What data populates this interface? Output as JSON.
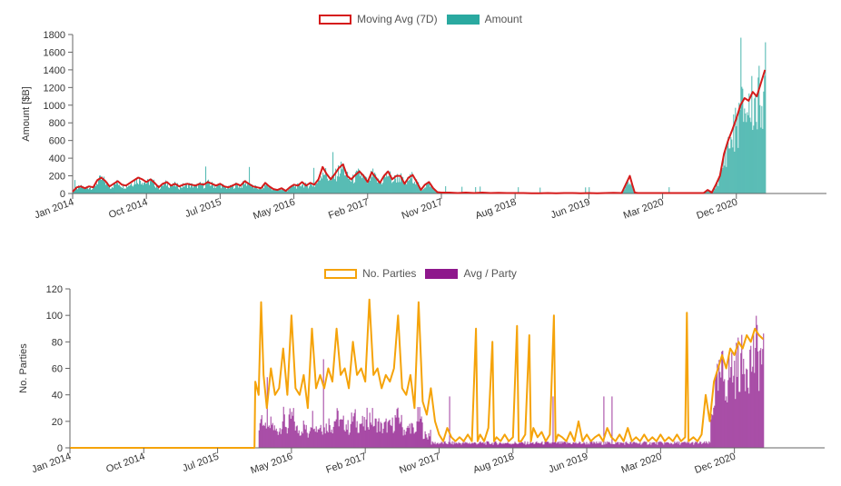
{
  "chart_data": [
    {
      "type": "bar+line",
      "legend": [
        {
          "name": "Moving Avg (7D)",
          "color": "#d51b1b",
          "style": "outline"
        },
        {
          "name": "Amount",
          "color": "#2aa9a0",
          "style": "fill"
        }
      ],
      "ylabel": "Amount [$B]",
      "ylim": [
        0,
        1800
      ],
      "yticks": [
        0,
        200,
        400,
        600,
        800,
        1000,
        1200,
        1400,
        1600,
        1800
      ],
      "xticks": [
        "Jan 2014",
        "Oct 2014",
        "Jul 2015",
        "May 2016",
        "Feb 2017",
        "Nov 2017",
        "Aug 2018",
        "Jun 2019",
        "Mar 2020",
        "Dec 2020"
      ],
      "x_range_months": [
        0,
        92
      ],
      "moving_avg": {
        "name": "Moving Avg (7D)",
        "points": [
          [
            0,
            20
          ],
          [
            0.5,
            70
          ],
          [
            1,
            80
          ],
          [
            1.5,
            60
          ],
          [
            2,
            80
          ],
          [
            2.5,
            70
          ],
          [
            3,
            150
          ],
          [
            3.5,
            180
          ],
          [
            4,
            140
          ],
          [
            4.5,
            80
          ],
          [
            5,
            110
          ],
          [
            5.5,
            140
          ],
          [
            6,
            100
          ],
          [
            6.5,
            90
          ],
          [
            7,
            120
          ],
          [
            7.5,
            150
          ],
          [
            8,
            180
          ],
          [
            8.5,
            160
          ],
          [
            9,
            130
          ],
          [
            9.5,
            160
          ],
          [
            10,
            120
          ],
          [
            10.5,
            70
          ],
          [
            11,
            110
          ],
          [
            11.5,
            130
          ],
          [
            12,
            90
          ],
          [
            12.5,
            110
          ],
          [
            13,
            80
          ],
          [
            13.5,
            100
          ],
          [
            14,
            110
          ],
          [
            14.5,
            100
          ],
          [
            15,
            90
          ],
          [
            15.5,
            110
          ],
          [
            16,
            100
          ],
          [
            16.5,
            130
          ],
          [
            17,
            110
          ],
          [
            17.5,
            90
          ],
          [
            18,
            110
          ],
          [
            18.5,
            80
          ],
          [
            19,
            70
          ],
          [
            19.5,
            90
          ],
          [
            20,
            110
          ],
          [
            20.5,
            90
          ],
          [
            21,
            140
          ],
          [
            21.5,
            110
          ],
          [
            22,
            80
          ],
          [
            22.5,
            70
          ],
          [
            23,
            60
          ],
          [
            23.5,
            120
          ],
          [
            24,
            80
          ],
          [
            24.5,
            50
          ],
          [
            25,
            40
          ],
          [
            25.5,
            60
          ],
          [
            26,
            30
          ],
          [
            26.5,
            70
          ],
          [
            27,
            100
          ],
          [
            27.5,
            90
          ],
          [
            28,
            130
          ],
          [
            28.5,
            90
          ],
          [
            29,
            120
          ],
          [
            29.5,
            100
          ],
          [
            30,
            160
          ],
          [
            30.5,
            300
          ],
          [
            31,
            220
          ],
          [
            31.5,
            160
          ],
          [
            32,
            220
          ],
          [
            32.5,
            290
          ],
          [
            33,
            330
          ],
          [
            33.5,
            200
          ],
          [
            34,
            160
          ],
          [
            34.5,
            210
          ],
          [
            35,
            250
          ],
          [
            35.5,
            200
          ],
          [
            36,
            130
          ],
          [
            36.5,
            240
          ],
          [
            37,
            180
          ],
          [
            37.5,
            120
          ],
          [
            38,
            200
          ],
          [
            38.5,
            250
          ],
          [
            39,
            160
          ],
          [
            39.5,
            200
          ],
          [
            40,
            200
          ],
          [
            40.5,
            110
          ],
          [
            41,
            180
          ],
          [
            41.5,
            210
          ],
          [
            42,
            130
          ],
          [
            42.5,
            40
          ],
          [
            43,
            100
          ],
          [
            43.5,
            130
          ],
          [
            44,
            60
          ],
          [
            44.5,
            15
          ],
          [
            45,
            10
          ],
          [
            46,
            10
          ],
          [
            47,
            5
          ],
          [
            48,
            10
          ],
          [
            49,
            5
          ],
          [
            50,
            10
          ],
          [
            51,
            5
          ],
          [
            52,
            8
          ],
          [
            53,
            5
          ],
          [
            54,
            5
          ],
          [
            55,
            5
          ],
          [
            56,
            3
          ],
          [
            57,
            3
          ],
          [
            58,
            5
          ],
          [
            59,
            3
          ],
          [
            60,
            5
          ],
          [
            61,
            5
          ],
          [
            62,
            3
          ],
          [
            63,
            5
          ],
          [
            64,
            3
          ],
          [
            65,
            5
          ],
          [
            66,
            8
          ],
          [
            67,
            5
          ],
          [
            68,
            200
          ],
          [
            68.3,
            100
          ],
          [
            68.6,
            10
          ],
          [
            69,
            5
          ],
          [
            70,
            5
          ],
          [
            71,
            5
          ],
          [
            72,
            5
          ],
          [
            73,
            5
          ],
          [
            74,
            5
          ],
          [
            75,
            5
          ],
          [
            76,
            5
          ],
          [
            77,
            5
          ],
          [
            77.5,
            40
          ],
          [
            78,
            10
          ],
          [
            78.5,
            100
          ],
          [
            79,
            200
          ],
          [
            79.5,
            450
          ],
          [
            80,
            600
          ],
          [
            80.5,
            720
          ],
          [
            81,
            850
          ],
          [
            81.5,
            1000
          ],
          [
            82,
            1080
          ],
          [
            82.5,
            1050
          ],
          [
            83,
            1150
          ],
          [
            83.5,
            1100
          ],
          [
            84,
            1250
          ],
          [
            84.5,
            1400
          ]
        ]
      },
      "amount_bars_color": "#2aa9a0"
    },
    {
      "type": "bar+line",
      "legend": [
        {
          "name": "No. Parties",
          "color": "#f5a30a",
          "style": "outline"
        },
        {
          "name": "Avg / Party",
          "color": "#8e178c",
          "style": "fill"
        }
      ],
      "ylabel": "No. Parties",
      "ylim": [
        0,
        120
      ],
      "yticks": [
        0,
        20,
        40,
        60,
        80,
        100,
        120
      ],
      "xticks": [
        "Jan 2014",
        "Oct 2014",
        "Jul 2015",
        "May 2016",
        "Feb 2017",
        "Nov 2017",
        "Aug 2018",
        "Jun 2019",
        "Mar 2020",
        "Dec 2020"
      ],
      "x_range_months": [
        0,
        92
      ],
      "parties": {
        "name": "No. Parties",
        "points": [
          [
            0,
            0
          ],
          [
            22.5,
            0
          ],
          [
            22.6,
            50
          ],
          [
            23,
            40
          ],
          [
            23.3,
            110
          ],
          [
            23.6,
            55
          ],
          [
            24,
            30
          ],
          [
            24.5,
            60
          ],
          [
            25,
            40
          ],
          [
            25.5,
            45
          ],
          [
            26,
            75
          ],
          [
            26.5,
            40
          ],
          [
            27,
            100
          ],
          [
            27.5,
            45
          ],
          [
            28,
            40
          ],
          [
            28.5,
            55
          ],
          [
            29,
            30
          ],
          [
            29.5,
            90
          ],
          [
            30,
            45
          ],
          [
            30.5,
            55
          ],
          [
            31,
            45
          ],
          [
            31.5,
            60
          ],
          [
            32,
            50
          ],
          [
            32.5,
            90
          ],
          [
            33,
            55
          ],
          [
            33.5,
            60
          ],
          [
            34,
            45
          ],
          [
            34.5,
            80
          ],
          [
            35,
            55
          ],
          [
            35.5,
            60
          ],
          [
            36,
            50
          ],
          [
            36.5,
            112
          ],
          [
            37,
            55
          ],
          [
            37.5,
            60
          ],
          [
            38,
            45
          ],
          [
            38.5,
            55
          ],
          [
            39,
            50
          ],
          [
            39.5,
            60
          ],
          [
            40,
            100
          ],
          [
            40.5,
            45
          ],
          [
            41,
            40
          ],
          [
            41.5,
            55
          ],
          [
            42,
            30
          ],
          [
            42.5,
            110
          ],
          [
            43,
            35
          ],
          [
            43.5,
            25
          ],
          [
            44,
            45
          ],
          [
            44.5,
            20
          ],
          [
            45,
            10
          ],
          [
            45.5,
            5
          ],
          [
            46,
            15
          ],
          [
            46.5,
            8
          ],
          [
            47,
            5
          ],
          [
            47.5,
            8
          ],
          [
            48,
            5
          ],
          [
            48.5,
            10
          ],
          [
            49,
            5
          ],
          [
            49.5,
            90
          ],
          [
            49.7,
            5
          ],
          [
            50,
            10
          ],
          [
            50.5,
            5
          ],
          [
            51,
            15
          ],
          [
            51.5,
            80
          ],
          [
            51.7,
            5
          ],
          [
            52,
            8
          ],
          [
            52.5,
            5
          ],
          [
            53,
            10
          ],
          [
            53.5,
            5
          ],
          [
            54,
            8
          ],
          [
            54.5,
            92
          ],
          [
            54.7,
            5
          ],
          [
            55,
            5
          ],
          [
            55.5,
            10
          ],
          [
            56,
            85
          ],
          [
            56.2,
            5
          ],
          [
            56.5,
            15
          ],
          [
            57,
            8
          ],
          [
            57.5,
            12
          ],
          [
            58,
            5
          ],
          [
            58.5,
            10
          ],
          [
            59,
            100
          ],
          [
            59.2,
            5
          ],
          [
            59.5,
            10
          ],
          [
            60,
            8
          ],
          [
            60.5,
            5
          ],
          [
            61,
            12
          ],
          [
            61.5,
            5
          ],
          [
            62,
            20
          ],
          [
            62.5,
            5
          ],
          [
            63,
            10
          ],
          [
            63.5,
            5
          ],
          [
            64,
            8
          ],
          [
            64.5,
            10
          ],
          [
            65,
            5
          ],
          [
            65.5,
            15
          ],
          [
            66,
            8
          ],
          [
            66.5,
            5
          ],
          [
            67,
            10
          ],
          [
            67.5,
            5
          ],
          [
            68,
            15
          ],
          [
            68.5,
            5
          ],
          [
            69,
            8
          ],
          [
            69.5,
            5
          ],
          [
            70,
            10
          ],
          [
            70.5,
            5
          ],
          [
            71,
            8
          ],
          [
            71.5,
            5
          ],
          [
            72,
            10
          ],
          [
            72.5,
            5
          ],
          [
            73,
            8
          ],
          [
            73.5,
            5
          ],
          [
            74,
            10
          ],
          [
            74.5,
            5
          ],
          [
            75,
            8
          ],
          [
            75.2,
            102
          ],
          [
            75.4,
            5
          ],
          [
            76,
            8
          ],
          [
            76.5,
            5
          ],
          [
            77,
            10
          ],
          [
            77.5,
            40
          ],
          [
            78,
            20
          ],
          [
            78.5,
            50
          ],
          [
            79,
            60
          ],
          [
            79.5,
            70
          ],
          [
            80,
            60
          ],
          [
            80.5,
            75
          ],
          [
            81,
            70
          ],
          [
            81.5,
            80
          ],
          [
            82,
            75
          ],
          [
            82.5,
            85
          ],
          [
            83,
            80
          ],
          [
            83.5,
            90
          ],
          [
            84,
            85
          ],
          [
            84.5,
            82
          ]
        ]
      },
      "avg_party_bars_color": "#8e178c"
    }
  ]
}
